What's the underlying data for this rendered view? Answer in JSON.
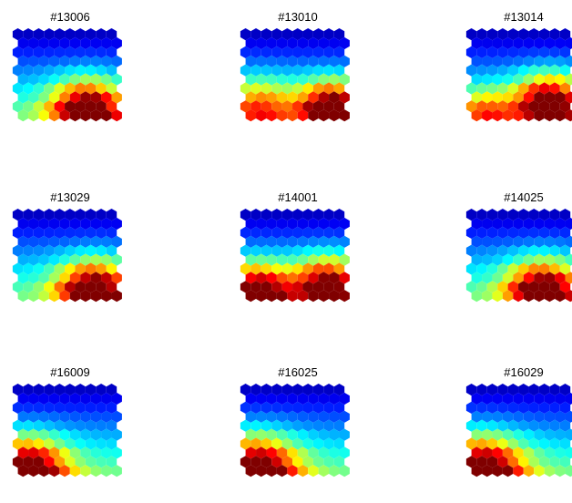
{
  "chart_data": {
    "type": "heatmap",
    "description_units": "normalized component value 0 (blue) to 1 (dark red)",
    "grid": {
      "rows": 10,
      "cols": 10,
      "cell_shape": "hexagon"
    },
    "colormap": "jet",
    "colormap_stops": [
      "#00008f",
      "#0000ff",
      "#0080ff",
      "#00ffff",
      "#80ff80",
      "#ffff00",
      "#ff8000",
      "#ff0000",
      "#800000"
    ],
    "panels": [
      {
        "title": "#13006",
        "hotspots": [
          {
            "row": 8.6,
            "col": 6.4,
            "strength": 1.0,
            "spread": 2.4
          }
        ]
      },
      {
        "title": "#13010",
        "hotspots": [
          {
            "row": 8.4,
            "col": 8.0,
            "strength": 1.0,
            "spread": 2.2
          },
          {
            "row": 8.4,
            "col": 1.0,
            "strength": 0.55,
            "spread": 2.4
          }
        ]
      },
      {
        "title": "#13014",
        "hotspots": [
          {
            "row": 7.8,
            "col": 7.2,
            "strength": 1.0,
            "spread": 2.3
          },
          {
            "row": 9.0,
            "col": 1.0,
            "strength": 0.5,
            "spread": 2.0
          }
        ]
      },
      {
        "title": "#13029",
        "hotspots": [
          {
            "row": 8.6,
            "col": 7.0,
            "strength": 1.0,
            "spread": 2.4
          }
        ]
      },
      {
        "title": "#14001",
        "hotspots": [
          {
            "row": 8.8,
            "col": 0.8,
            "strength": 0.95,
            "spread": 2.3
          },
          {
            "row": 8.0,
            "col": 7.6,
            "strength": 0.9,
            "spread": 2.3
          }
        ]
      },
      {
        "title": "#14025",
        "hotspots": [
          {
            "row": 8.6,
            "col": 6.6,
            "strength": 1.0,
            "spread": 2.4
          }
        ]
      },
      {
        "title": "#16009",
        "hotspots": [
          {
            "row": 9.2,
            "col": 0.6,
            "strength": 1.0,
            "spread": 2.6
          }
        ]
      },
      {
        "title": "#16025",
        "hotspots": [
          {
            "row": 9.2,
            "col": 0.8,
            "strength": 1.0,
            "spread": 2.7
          }
        ]
      },
      {
        "title": "#16029",
        "hotspots": [
          {
            "row": 9.2,
            "col": 0.8,
            "strength": 1.0,
            "spread": 2.7
          }
        ]
      }
    ]
  }
}
